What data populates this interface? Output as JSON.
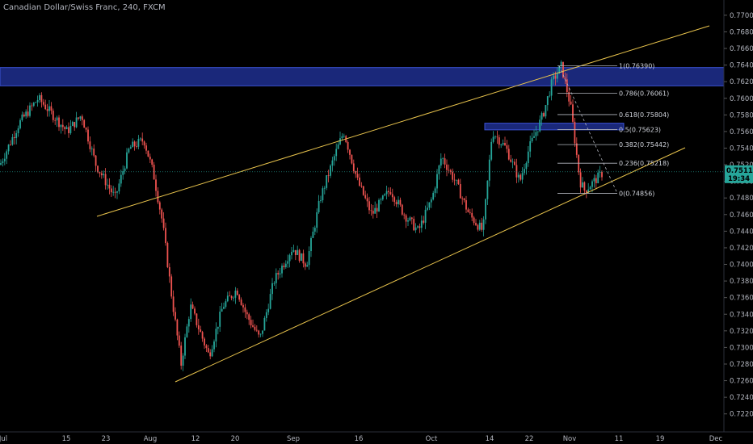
{
  "header": {
    "title": "Canadian Dollar/Swiss Franc, 240, FXCM"
  },
  "colors": {
    "background": "#000000",
    "bull": "#26a69a",
    "bear": "#ef5350",
    "trendline": "#e8c34c",
    "zone": "#1e2f8f",
    "fib": "#b2b5be",
    "price_tag": "#26a69a"
  },
  "chart_data": {
    "type": "candlestick",
    "y_axis": {
      "ylim": [
        0.721,
        0.773
      ],
      "ticks": [
        "0.77200",
        "0.77000",
        "0.76800",
        "0.76600",
        "0.76400",
        "0.76200",
        "0.76000",
        "0.75800",
        "0.75600",
        "0.75400",
        "0.75200",
        "0.75000",
        "0.74800",
        "0.74600",
        "0.74400",
        "0.74200",
        "0.74000",
        "0.73800",
        "0.73600",
        "0.73400",
        "0.73200",
        "0.73000",
        "0.72800",
        "0.72600",
        "0.72400",
        "0.72200"
      ]
    },
    "x_axis": {
      "tick_labels": [
        "Jul",
        "15",
        "23",
        "Aug",
        "12",
        "20",
        "Sep",
        "16",
        "Oct",
        "14",
        "22",
        "Nov",
        "11",
        "19",
        "Dec"
      ]
    },
    "price_series": [
      [
        "Jul 1",
        0.752
      ],
      [
        "Jul 5",
        0.757
      ],
      [
        "Jul 9",
        0.76
      ],
      [
        "Jul 12",
        0.758
      ],
      [
        "Jul 15",
        0.756
      ],
      [
        "Jul 18",
        0.758
      ],
      [
        "Jul 21",
        0.752
      ],
      [
        "Jul 23",
        0.75
      ],
      [
        "Jul 25",
        0.748
      ],
      [
        "Jul 28",
        0.754
      ],
      [
        "Jul 31",
        0.755
      ],
      [
        "Aug 2",
        0.751
      ],
      [
        "Aug 4",
        0.745
      ],
      [
        "Aug 6",
        0.736
      ],
      [
        "Aug 8",
        0.728
      ],
      [
        "Aug 10",
        0.735
      ],
      [
        "Aug 12",
        0.732
      ],
      [
        "Aug 14",
        0.729
      ],
      [
        "Aug 17",
        0.735
      ],
      [
        "Aug 20",
        0.737
      ],
      [
        "Aug 22",
        0.734
      ],
      [
        "Aug 25",
        0.731
      ],
      [
        "Aug 28",
        0.738
      ],
      [
        "Sep 1",
        0.742
      ],
      [
        "Sep 4",
        0.74
      ],
      [
        "Sep 7",
        0.748
      ],
      [
        "Sep 10",
        0.753
      ],
      [
        "Sep 12",
        0.756
      ],
      [
        "Sep 15",
        0.75
      ],
      [
        "Sep 18",
        0.746
      ],
      [
        "Sep 22",
        0.749
      ],
      [
        "Sep 25",
        0.746
      ],
      [
        "Sep 28",
        0.744
      ],
      [
        "Oct 1",
        0.748
      ],
      [
        "Oct 3",
        0.753
      ],
      [
        "Oct 6",
        0.75
      ],
      [
        "Oct 9",
        0.746
      ],
      [
        "Oct 12",
        0.744
      ],
      [
        "Oct 14",
        0.756
      ],
      [
        "Oct 17",
        0.754
      ],
      [
        "Oct 20",
        0.75
      ],
      [
        "Oct 22",
        0.754
      ],
      [
        "Oct 25",
        0.758
      ],
      [
        "Oct 27",
        0.762
      ],
      [
        "Oct 29",
        0.7639
      ],
      [
        "Oct 31",
        0.759
      ],
      [
        "Nov 2",
        0.75
      ],
      [
        "Nov 3",
        0.7489
      ],
      [
        "Nov 5",
        0.75
      ],
      [
        "Nov 7",
        0.7511
      ]
    ],
    "fibonacci": [
      {
        "label": "1(0.76390)",
        "value": 0.7639
      },
      {
        "label": "0.786(0.76061)",
        "value": 0.76061
      },
      {
        "label": "0.618(0.75804)",
        "value": 0.75804
      },
      {
        "label": "0.5(0.75623)",
        "value": 0.75623
      },
      {
        "label": "0.382(0.75442)",
        "value": 0.75442
      },
      {
        "label": "0.236(0.75218)",
        "value": 0.75218
      },
      {
        "label": "0(0.74856)",
        "value": 0.74856
      }
    ],
    "zones": [
      {
        "from": 0.7615,
        "to": 0.7637
      },
      {
        "from": 0.7562,
        "to": 0.757
      }
    ],
    "last_price": {
      "value_label": "0.75115",
      "countdown": "19:34",
      "value": 0.75115
    }
  }
}
